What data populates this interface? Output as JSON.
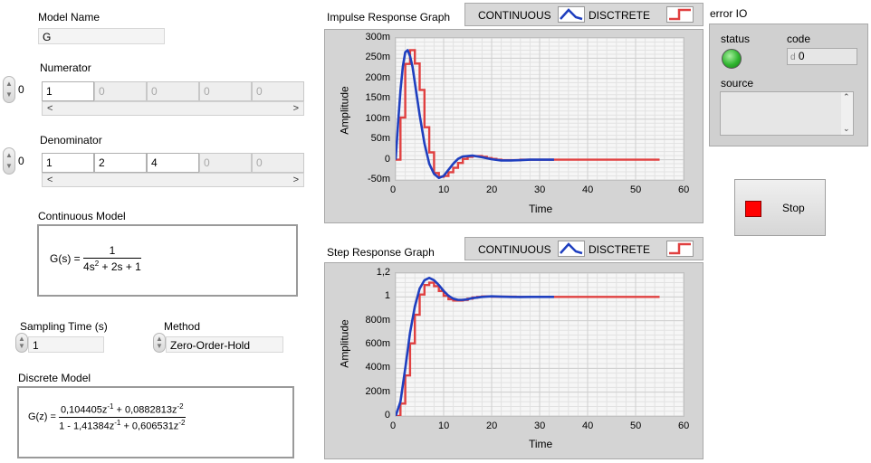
{
  "model_name": {
    "label": "Model Name",
    "value": "G"
  },
  "numerator": {
    "label": "Numerator",
    "index": "0",
    "values": [
      "1",
      "0",
      "0",
      "0",
      "0"
    ]
  },
  "denominator": {
    "label": "Denominator",
    "index": "0",
    "values": [
      "1",
      "2",
      "4",
      "0",
      "0"
    ]
  },
  "continuous_model": {
    "label": "Continuous Model",
    "lhs": "G(s) =",
    "num": "1",
    "den": [
      "4s",
      "2",
      " + 2s + 1"
    ]
  },
  "sampling_time": {
    "label": "Sampling Time (s)",
    "value": "1"
  },
  "method": {
    "label": "Method",
    "value": "Zero-Order-Hold"
  },
  "discrete_model": {
    "label": "Discrete Model",
    "lhs": "G(z) =",
    "num": [
      "0,104405z",
      "-1",
      " + 0,0882813z",
      "-2"
    ],
    "den": [
      "1 - 1,41384z",
      "-1",
      " + 0,606531z",
      "-2"
    ]
  },
  "impulse_graph": {
    "title": "Impulse Response Graph",
    "legend_cont": "CONTINUOUS",
    "legend_disc": "DISCTRETE",
    "xlabel": "Time",
    "ylabel": "Amplitude",
    "yticks": [
      "300m",
      "250m",
      "200m",
      "150m",
      "100m",
      "50m",
      "0",
      "-50m"
    ],
    "xticks": [
      "0",
      "10",
      "20",
      "30",
      "40",
      "50",
      "60"
    ]
  },
  "step_graph": {
    "title": "Step Response Graph",
    "legend_cont": "CONTINUOUS",
    "legend_disc": "DISCTRETE",
    "xlabel": "Time",
    "ylabel": "Amplitude",
    "yticks": [
      "1,2",
      "1",
      "800m",
      "600m",
      "400m",
      "200m",
      "0"
    ],
    "xticks": [
      "0",
      "10",
      "20",
      "30",
      "40",
      "50",
      "60"
    ]
  },
  "error_io": {
    "title": "error IO",
    "status_label": "status",
    "code_label": "code",
    "code_prefix": "d",
    "code_value": "0",
    "source_label": "source",
    "source_value": ""
  },
  "stop_button": {
    "label": "Stop"
  },
  "colors": {
    "continuous": "#1f3fbf",
    "discrete": "#e04040",
    "status_ok": "#2fb52f",
    "stop": "#ff0000"
  },
  "chart_data": [
    {
      "type": "line",
      "title": "Impulse Response Graph",
      "xlabel": "Time",
      "ylabel": "Amplitude",
      "xlim": [
        0,
        60
      ],
      "ylim": [
        -0.05,
        0.3
      ],
      "grid": true,
      "series": [
        {
          "name": "CONTINUOUS",
          "x": [
            0,
            0.5,
            1,
            1.5,
            2,
            2.5,
            3,
            3.5,
            4,
            5,
            6,
            7,
            8,
            9,
            10,
            11,
            12,
            13,
            14,
            16,
            18,
            20,
            22,
            24,
            26,
            28,
            30,
            33
          ],
          "y": [
            0,
            0.09,
            0.17,
            0.23,
            0.265,
            0.27,
            0.255,
            0.23,
            0.19,
            0.11,
            0.04,
            -0.01,
            -0.035,
            -0.045,
            -0.04,
            -0.025,
            -0.01,
            0.002,
            0.008,
            0.01,
            0.006,
            0.001,
            -0.002,
            -0.002,
            -0.001,
            0,
            0,
            0
          ]
        },
        {
          "name": "DISCTRETE",
          "x": [
            0,
            1,
            2,
            3,
            4,
            5,
            6,
            7,
            8,
            9,
            10,
            11,
            12,
            13,
            14,
            15,
            16,
            17,
            18,
            19,
            20,
            21,
            22,
            23,
            24,
            25,
            26,
            27,
            28,
            29,
            30,
            31,
            32,
            33,
            55
          ],
          "y": [
            0,
            0.104,
            0.236,
            0.27,
            0.237,
            0.172,
            0.08,
            0.018,
            -0.033,
            -0.042,
            -0.04,
            -0.031,
            -0.02,
            -0.008,
            0.002,
            0.007,
            0.009,
            0.009,
            0.007,
            0.004,
            0.002,
            0.0,
            -0.001,
            -0.001,
            -0.001,
            -0.001,
            0,
            0,
            0,
            0,
            0,
            0,
            0,
            0,
            0
          ]
        }
      ]
    },
    {
      "type": "line",
      "title": "Step Response Graph",
      "xlabel": "Time",
      "ylabel": "Amplitude",
      "xlim": [
        0,
        60
      ],
      "ylim": [
        0,
        1.2
      ],
      "grid": true,
      "series": [
        {
          "name": "CONTINUOUS",
          "x": [
            0,
            1,
            2,
            3,
            4,
            5,
            6,
            7,
            8,
            9,
            10,
            11,
            12,
            13,
            14,
            15,
            16,
            18,
            20,
            22,
            24,
            26,
            28,
            30,
            33
          ],
          "y": [
            0,
            0.12,
            0.4,
            0.7,
            0.92,
            1.07,
            1.14,
            1.16,
            1.14,
            1.1,
            1.05,
            1.01,
            0.985,
            0.975,
            0.975,
            0.98,
            0.99,
            1.0,
            1.005,
            1.002,
            1.0,
            0.999,
            1.0,
            1.0,
            1.0
          ]
        },
        {
          "name": "DISCTRETE",
          "x": [
            0,
            1,
            2,
            3,
            4,
            5,
            6,
            7,
            8,
            9,
            10,
            11,
            12,
            13,
            14,
            15,
            16,
            17,
            18,
            19,
            20,
            25,
            30,
            33,
            55
          ],
          "y": [
            0,
            0.104,
            0.34,
            0.61,
            0.85,
            1.02,
            1.1,
            1.12,
            1.09,
            1.05,
            1.01,
            0.98,
            0.97,
            0.97,
            0.975,
            0.985,
            0.995,
            1.0,
            1.004,
            1.004,
            1.002,
            1.0,
            1.0,
            1.0,
            1.0
          ]
        }
      ]
    }
  ]
}
